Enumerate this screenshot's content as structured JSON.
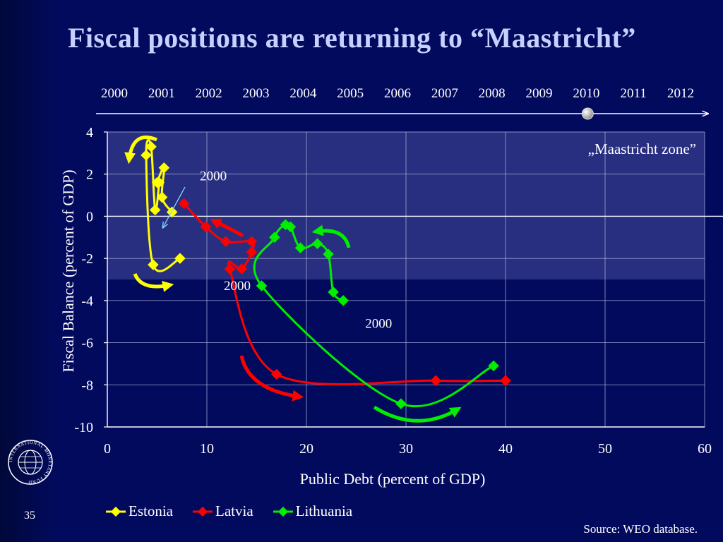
{
  "slide": {
    "title": "Fiscal positions are returning to “Maastricht”",
    "page_number": "35",
    "source": "Source: WEO database.",
    "logo_text": "INTERNATIONAL MONETARY FUND"
  },
  "colors": {
    "background": "#020a5e",
    "maastricht_zone": "#2e3384",
    "Estonia": "#ffff00",
    "Latvia": "#ff0000",
    "Lithuania": "#00ee00"
  },
  "timeline": {
    "years": [
      "2000",
      "2001",
      "2002",
      "2003",
      "2004",
      "2005",
      "2006",
      "2007",
      "2008",
      "2009",
      "2010",
      "2011",
      "2012"
    ],
    "current": "2010"
  },
  "chart_data": {
    "type": "scatter",
    "xlabel": "Public Debt (percent of GDP)",
    "ylabel": "Fiscal Balance (percent of GDP)",
    "xlim": [
      0,
      60
    ],
    "ylim": [
      -10,
      4
    ],
    "xticks": [
      0,
      10,
      20,
      30,
      40,
      50,
      60
    ],
    "yticks": [
      4,
      2,
      0,
      -2,
      -4,
      -6,
      -8,
      -10
    ],
    "grid": true,
    "legend_position": "bottom",
    "zone": {
      "label": "„Maastricht zone”",
      "x": [
        0,
        60
      ],
      "y": [
        -3,
        4
      ]
    },
    "series": [
      {
        "name": "Estonia",
        "color": "#ffff00",
        "x": [
          6.5,
          5.5,
          5.7,
          5.0,
          5.2,
          4.8,
          4.4,
          3.9,
          4.6,
          7.3
        ],
        "y": [
          0.2,
          0.9,
          2.3,
          1.6,
          1.6,
          0.3,
          3.3,
          2.9,
          -2.3,
          -2.0
        ]
      },
      {
        "name": "Latvia",
        "color": "#ff0000",
        "x": [
          7.7,
          9.9,
          11.9,
          14.5,
          14.5,
          13.5,
          12.3,
          17.0,
          33.0,
          40.0
        ],
        "y": [
          0.6,
          -0.5,
          -1.2,
          -1.2,
          -1.7,
          -2.5,
          -2.5,
          -7.5,
          -7.8,
          -7.8
        ]
      },
      {
        "name": "Lithuania",
        "color": "#00ee00",
        "x": [
          23.7,
          22.7,
          22.2,
          21.1,
          19.4,
          18.4,
          17.9,
          16.8,
          15.5,
          29.5,
          38.8
        ],
        "y": [
          -4.0,
          -3.6,
          -1.8,
          -1.3,
          -1.5,
          -0.5,
          -0.4,
          -1.0,
          -3.3,
          -8.9,
          -7.1
        ]
      }
    ],
    "annotations": [
      {
        "text": "2000",
        "x": 9.3,
        "y": 1.7
      },
      {
        "text": "2000",
        "x": 11.7,
        "y": -3.5
      },
      {
        "text": "2000",
        "x": 25.9,
        "y": -5.3
      }
    ]
  }
}
